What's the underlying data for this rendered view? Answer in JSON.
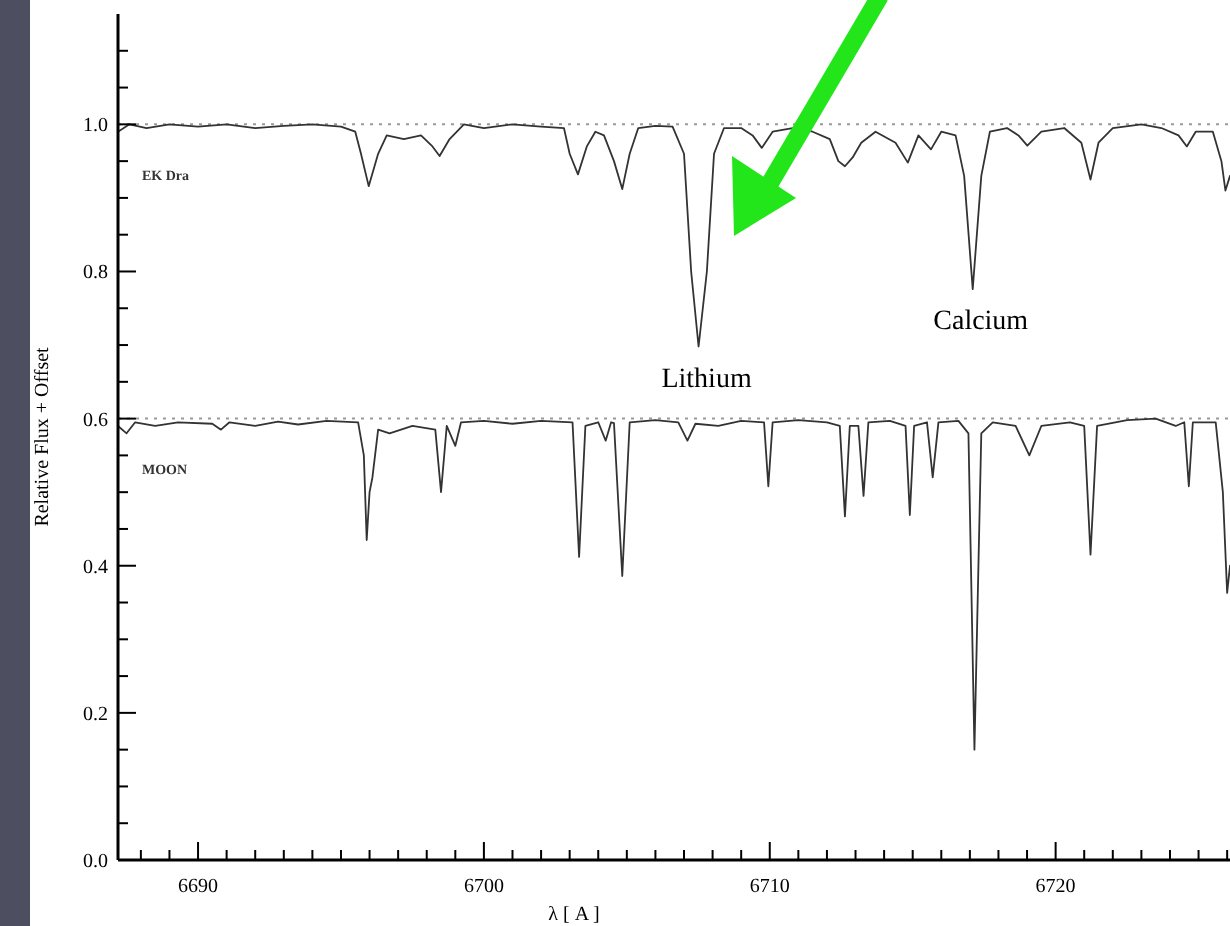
{
  "chart_data": {
    "type": "line",
    "xlabel": "λ [ A ]",
    "ylabel": "Relative Flux + Offset",
    "xlim": [
      6687.2,
      6726.1
    ],
    "ylim": [
      0,
      1.15
    ],
    "xticks": [
      6690,
      6700,
      6710,
      6720,
      {
        "value": 6688,
        "label": null
      },
      {
        "value": 6689,
        "label": null
      },
      {
        "value": 6691,
        "label": null
      },
      {
        "value": 6692,
        "label": null
      },
      {
        "value": 6693,
        "label": null
      },
      {
        "value": 6694,
        "label": null
      },
      {
        "value": 6695,
        "label": null
      },
      {
        "value": 6696,
        "label": null
      },
      {
        "value": 6697,
        "label": null
      },
      {
        "value": 6698,
        "label": null
      },
      {
        "value": 6699,
        "label": null
      },
      {
        "value": 6701,
        "label": null
      },
      {
        "value": 6702,
        "label": null
      },
      {
        "value": 6703,
        "label": null
      },
      {
        "value": 6704,
        "label": null
      },
      {
        "value": 6705,
        "label": null
      },
      {
        "value": 6706,
        "label": null
      },
      {
        "value": 6707,
        "label": null
      },
      {
        "value": 6708,
        "label": null
      },
      {
        "value": 6709,
        "label": null
      },
      {
        "value": 6711,
        "label": null
      },
      {
        "value": 6712,
        "label": null
      },
      {
        "value": 6713,
        "label": null
      },
      {
        "value": 6714,
        "label": null
      },
      {
        "value": 6715,
        "label": null
      },
      {
        "value": 6716,
        "label": null
      },
      {
        "value": 6717,
        "label": null
      },
      {
        "value": 6718,
        "label": null
      },
      {
        "value": 6719,
        "label": null
      },
      {
        "value": 6721,
        "label": null
      },
      {
        "value": 6722,
        "label": null
      },
      {
        "value": 6723,
        "label": null
      },
      {
        "value": 6724,
        "label": null
      },
      {
        "value": 6725,
        "label": null
      },
      {
        "value": 6726,
        "label": null
      }
    ],
    "yticks": [
      {
        "value": 0,
        "label": "0.0"
      },
      {
        "value": 0.2,
        "label": "0.2"
      },
      {
        "value": 0.4,
        "label": "0.4"
      },
      {
        "value": 0.6,
        "label": "0.6"
      },
      {
        "value": 0.8,
        "label": "0.8"
      },
      {
        "value": 1,
        "label": "1.0"
      },
      {
        "value": 0.05,
        "label": null
      },
      {
        "value": 0.1,
        "label": null
      },
      {
        "value": 0.15,
        "label": null
      },
      {
        "value": 0.25,
        "label": null
      },
      {
        "value": 0.3,
        "label": null
      },
      {
        "value": 0.35,
        "label": null
      },
      {
        "value": 0.45,
        "label": null
      },
      {
        "value": 0.5,
        "label": null
      },
      {
        "value": 0.55,
        "label": null
      },
      {
        "value": 0.65,
        "label": null
      },
      {
        "value": 0.7,
        "label": null
      },
      {
        "value": 0.75,
        "label": null
      },
      {
        "value": 0.85,
        "label": null
      },
      {
        "value": 0.9,
        "label": null
      },
      {
        "value": 0.95,
        "label": null
      },
      {
        "value": 1.05,
        "label": null
      },
      {
        "value": 1.1,
        "label": null
      }
    ],
    "grid": false,
    "line_style": "solid",
    "ref_lines": [
      {
        "axis": "y",
        "value": 1.0,
        "color": "#999999",
        "line_style": "dotted"
      },
      {
        "axis": "y",
        "value": 0.6,
        "color": "#999999",
        "line_style": "dotted"
      }
    ],
    "annotations": [
      {
        "text": "Lithium",
        "x": 6707.51,
        "y": 0.698
      },
      {
        "text": "Calcium",
        "x": 6717.1,
        "y": 0.776
      }
    ],
    "series": [
      {
        "name": "EK Dra",
        "color": "#333333",
        "x": [
          6687.2,
          6687.6,
          6688.2,
          6689,
          6690,
          6691,
          6692,
          6693,
          6694,
          6695,
          6695.5,
          6695.7,
          6695.97,
          6696.3,
          6696.6,
          6697.2,
          6697.8,
          6698.2,
          6698.45,
          6698.8,
          6699.3,
          6700,
          6701,
          6702,
          6702.8,
          6703.0,
          6703.29,
          6703.6,
          6703.9,
          6704.2,
          6704.55,
          6704.84,
          6705.1,
          6705.4,
          6706,
          6706.6,
          6707.0,
          6707.25,
          6707.51,
          6707.8,
          6708.05,
          6708.4,
          6709,
          6709.4,
          6709.72,
          6710.1,
          6710.8,
          6711.5,
          6712.1,
          6712.4,
          6712.63,
          6712.9,
          6713.2,
          6713.7,
          6714.4,
          6714.83,
          6715.2,
          6715.64,
          6716,
          6716.5,
          6716.8,
          6717.1,
          6717.4,
          6717.7,
          6718.3,
          6718.7,
          6719.01,
          6719.5,
          6720.3,
          6720.9,
          6721.22,
          6721.5,
          6722,
          6723,
          6723.7,
          6724.3,
          6724.59,
          6724.9,
          6725.5,
          6725.8,
          6725.94,
          6726.1
        ],
        "values": [
          0.99,
          1.0,
          0.995,
          1.0,
          0.997,
          1.0,
          0.995,
          0.998,
          1.0,
          0.997,
          0.99,
          0.96,
          0.916,
          0.96,
          0.985,
          0.98,
          0.985,
          0.97,
          0.957,
          0.98,
          1.0,
          0.995,
          1.0,
          0.997,
          0.995,
          0.96,
          0.932,
          0.97,
          0.99,
          0.985,
          0.95,
          0.912,
          0.96,
          0.995,
          0.998,
          0.997,
          0.96,
          0.8,
          0.698,
          0.8,
          0.96,
          0.995,
          0.995,
          0.985,
          0.968,
          0.99,
          0.995,
          0.99,
          0.98,
          0.95,
          0.943,
          0.955,
          0.975,
          0.99,
          0.975,
          0.948,
          0.985,
          0.966,
          0.99,
          0.985,
          0.93,
          0.776,
          0.93,
          0.99,
          0.995,
          0.985,
          0.971,
          0.99,
          0.995,
          0.975,
          0.925,
          0.975,
          0.995,
          1.0,
          0.995,
          0.985,
          0.97,
          0.99,
          0.99,
          0.95,
          0.91,
          0.93
        ]
      },
      {
        "name": "MOON",
        "color": "#333333",
        "x": [
          6687.2,
          6687.5,
          6687.8,
          6688.5,
          6689.3,
          6690.5,
          6690.8,
          6691.1,
          6692,
          6692.8,
          6693.5,
          6694.5,
          6695.6,
          6695.8,
          6695.9,
          6696.0,
          6696.1,
          6696.3,
          6696.7,
          6697.5,
          6698.3,
          6698.5,
          6698.7,
          6699.0,
          6699.2,
          6700,
          6701,
          6702,
          6703.1,
          6703.33,
          6703.55,
          6704.0,
          6704.26,
          6704.45,
          6704.55,
          6704.84,
          6705.1,
          6706,
          6706.8,
          6707.12,
          6707.4,
          6708.2,
          6709,
          6709.8,
          6709.95,
          6710.1,
          6711,
          6712,
          6712.45,
          6712.63,
          6712.8,
          6713.1,
          6713.28,
          6713.45,
          6714.2,
          6714.75,
          6714.9,
          6715.05,
          6715.5,
          6715.7,
          6715.9,
          6716.6,
          6716.95,
          6717.16,
          6717.4,
          6717.8,
          6718.6,
          6719.08,
          6719.5,
          6720.5,
          6721.0,
          6721.22,
          6721.45,
          6722.5,
          6723.5,
          6724.2,
          6724.5,
          6724.66,
          6724.8,
          6725.6,
          6725.85,
          6726.0,
          6726.1
        ],
        "values": [
          0.59,
          0.58,
          0.595,
          0.59,
          0.595,
          0.593,
          0.585,
          0.595,
          0.59,
          0.596,
          0.592,
          0.597,
          0.595,
          0.55,
          0.435,
          0.5,
          0.52,
          0.585,
          0.58,
          0.59,
          0.585,
          0.5,
          0.59,
          0.563,
          0.595,
          0.597,
          0.593,
          0.597,
          0.595,
          0.412,
          0.59,
          0.595,
          0.57,
          0.595,
          0.594,
          0.386,
          0.595,
          0.598,
          0.595,
          0.57,
          0.593,
          0.59,
          0.597,
          0.595,
          0.508,
          0.595,
          0.598,
          0.595,
          0.59,
          0.467,
          0.59,
          0.59,
          0.495,
          0.595,
          0.597,
          0.59,
          0.469,
          0.59,
          0.595,
          0.52,
          0.595,
          0.597,
          0.58,
          0.15,
          0.58,
          0.595,
          0.59,
          0.55,
          0.59,
          0.595,
          0.59,
          0.415,
          0.59,
          0.598,
          0.6,
          0.59,
          0.595,
          0.508,
          0.595,
          0.595,
          0.5,
          0.363,
          0.4
        ]
      }
    ]
  }
}
